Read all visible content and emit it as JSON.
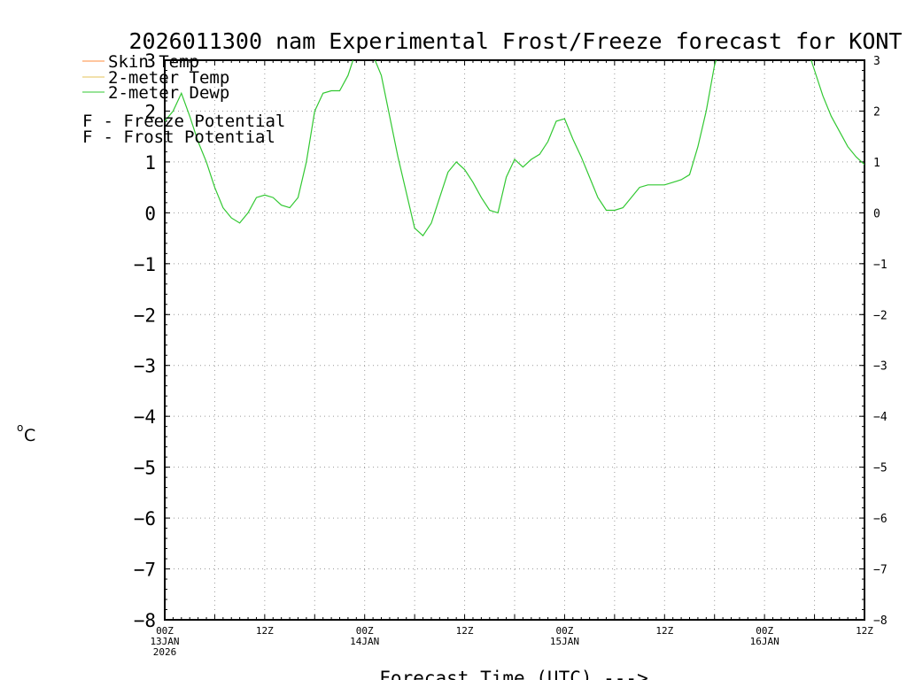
{
  "chart_data": {
    "type": "line",
    "title": "2026011300 nam Experimental Frost/Freeze forecast for KONT",
    "ylabel_sup": "o",
    "ylabel": "C",
    "xlabel": "Forecast Time (UTC) --->",
    "ylim": [
      -8,
      3
    ],
    "xlim_hours": [
      0,
      84
    ],
    "y_ticks_left": [
      "3",
      "2",
      "1",
      "0",
      "−1",
      "−2",
      "−3",
      "−4",
      "−5",
      "−6",
      "−7",
      "−8"
    ],
    "y_ticks_right": [
      "3",
      "2",
      "1",
      "0",
      "−1",
      "−2",
      "−3",
      "−4",
      "−5",
      "−6",
      "−7",
      "−8"
    ],
    "x_ticks": [
      {
        "hour": 0,
        "l1": "00Z",
        "l2": "13JAN",
        "l3": "2026"
      },
      {
        "hour": 12,
        "l1": "12Z",
        "l2": "",
        "l3": ""
      },
      {
        "hour": 24,
        "l1": "00Z",
        "l2": "14JAN",
        "l3": ""
      },
      {
        "hour": 36,
        "l1": "12Z",
        "l2": "",
        "l3": ""
      },
      {
        "hour": 48,
        "l1": "00Z",
        "l2": "15JAN",
        "l3": ""
      },
      {
        "hour": 60,
        "l1": "12Z",
        "l2": "",
        "l3": ""
      },
      {
        "hour": 72,
        "l1": "00Z",
        "l2": "16JAN",
        "l3": ""
      },
      {
        "hour": 84,
        "l1": "12Z",
        "l2": "",
        "l3": ""
      }
    ],
    "legend": [
      {
        "name": "Skin Temp",
        "color": "#ff8c3c"
      },
      {
        "name": "2-meter Temp",
        "color": "#e6c35a"
      },
      {
        "name": "2-meter Dewp",
        "color": "#32c832"
      }
    ],
    "symbols": [
      {
        "mark": "F",
        "text": " - Freeze Potential",
        "color": "#c832c8"
      },
      {
        "mark": "F",
        "text": " - Frost Potential",
        "color": "#5a78f0"
      }
    ],
    "series": [
      {
        "name": "2-meter Dewp",
        "color": "#32c832",
        "x": [
          0,
          1,
          2,
          3,
          4,
          5,
          6,
          7,
          8,
          9,
          10,
          11,
          12,
          13,
          14,
          15,
          16,
          17,
          18,
          19,
          20,
          21,
          22,
          23,
          24,
          25,
          26,
          27,
          28,
          29,
          30,
          31,
          32,
          33,
          34,
          35,
          36,
          37,
          38,
          39,
          40,
          41,
          42,
          43,
          44,
          45,
          46,
          47,
          48,
          49,
          50,
          51,
          52,
          53,
          54,
          55,
          56,
          57,
          58,
          59,
          60,
          61,
          62,
          63,
          64,
          65,
          66,
          67,
          68,
          69,
          70,
          71,
          72,
          73,
          74,
          75,
          76,
          77,
          78,
          79,
          80,
          81,
          82,
          83,
          84
        ],
        "y": [
          1.8,
          2.0,
          2.35,
          1.9,
          1.4,
          1.0,
          0.5,
          0.1,
          -0.1,
          -0.2,
          0.0,
          0.3,
          0.35,
          0.3,
          0.15,
          0.1,
          0.3,
          1.0,
          2.0,
          2.35,
          2.4,
          2.4,
          2.7,
          3.2,
          3.3,
          3.1,
          2.7,
          1.9,
          1.1,
          0.4,
          -0.3,
          -0.45,
          -0.2,
          0.3,
          0.8,
          1.0,
          0.85,
          0.6,
          0.3,
          0.05,
          0.0,
          0.7,
          1.05,
          0.9,
          1.05,
          1.15,
          1.4,
          1.8,
          1.85,
          1.45,
          1.1,
          0.7,
          0.3,
          0.05,
          0.05,
          0.1,
          0.3,
          0.5,
          0.55,
          0.55,
          0.55,
          0.6,
          0.65,
          0.75,
          1.3,
          2.0,
          2.9,
          3.4,
          3.6,
          3.7,
          3.7,
          3.7,
          3.7,
          3.7,
          3.7,
          3.7,
          3.7,
          3.3,
          2.8,
          2.3,
          1.9,
          1.6,
          1.3,
          1.1,
          0.95
        ]
      }
    ]
  }
}
